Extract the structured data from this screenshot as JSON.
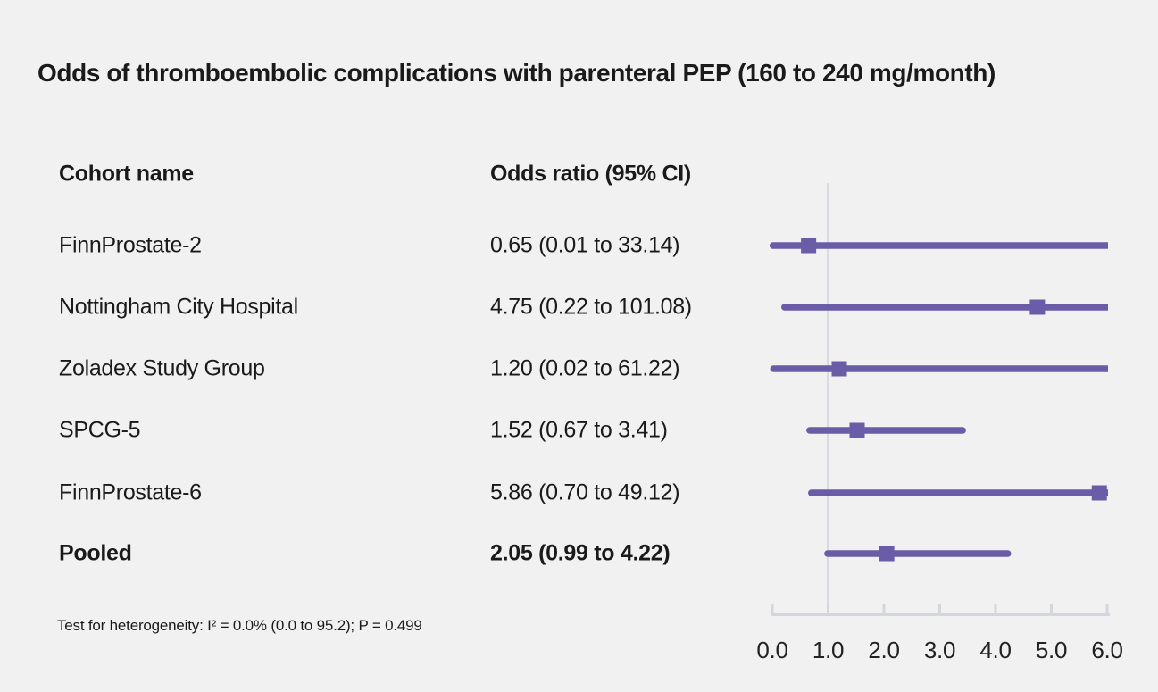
{
  "title": "Odds of thromboembolic complications with parenteral PEP (160 to 240 mg/month)",
  "table": {
    "cohort_header": "Cohort name",
    "or_header": "Odds ratio (95% CI)"
  },
  "footnote": "Test for heterogeneity: I² = 0.0% (0.0 to 95.2); P = 0.499",
  "chart_data": {
    "type": "forest",
    "title": "Odds of thromboembolic complications with parenteral PEP (160 to 240 mg/month)",
    "xlim": [
      0.0,
      6.0
    ],
    "reference_line": 1.0,
    "ticks": [
      {
        "value": 0.0,
        "label": "0.0"
      },
      {
        "value": 1.0,
        "label": "1.0"
      },
      {
        "value": 2.0,
        "label": "2.0"
      },
      {
        "value": 3.0,
        "label": "3.0"
      },
      {
        "value": 4.0,
        "label": "4.0"
      },
      {
        "value": 5.0,
        "label": "5.0"
      },
      {
        "value": 6.0,
        "label": "6.0"
      }
    ],
    "rows": [
      {
        "cohort": "FinnProstate-2",
        "or_text": "0.65 (0.01 to 33.14)",
        "or": 0.65,
        "ci_low": 0.01,
        "ci_high": 33.14,
        "bold": false
      },
      {
        "cohort": "Nottingham City Hospital",
        "or_text": "4.75 (0.22 to 101.08)",
        "or": 4.75,
        "ci_low": 0.22,
        "ci_high": 101.08,
        "bold": false
      },
      {
        "cohort": "Zoladex Study Group",
        "or_text": "1.20 (0.02 to 61.22)",
        "or": 1.2,
        "ci_low": 0.02,
        "ci_high": 61.22,
        "bold": false
      },
      {
        "cohort": "SPCG-5",
        "or_text": "1.52 (0.67 to 3.41)",
        "or": 1.52,
        "ci_low": 0.67,
        "ci_high": 3.41,
        "bold": false
      },
      {
        "cohort": "FinnProstate-6",
        "or_text": "5.86 (0.70 to 49.12)",
        "or": 5.86,
        "ci_low": 0.7,
        "ci_high": 49.12,
        "bold": false
      },
      {
        "cohort": "Pooled",
        "or_text": "2.05 (0.99 to 4.22)",
        "or": 2.05,
        "ci_low": 0.99,
        "ci_high": 4.22,
        "bold": true
      }
    ],
    "colors": {
      "marker": "#6a5ca6",
      "ci_line": "#6a5ca6",
      "reference_line": "#d8dbe1",
      "axis": "#d3d7dd",
      "text": "#1a1a1a",
      "background": "#f2f1f2"
    },
    "legend_position": "none",
    "grid": false
  }
}
